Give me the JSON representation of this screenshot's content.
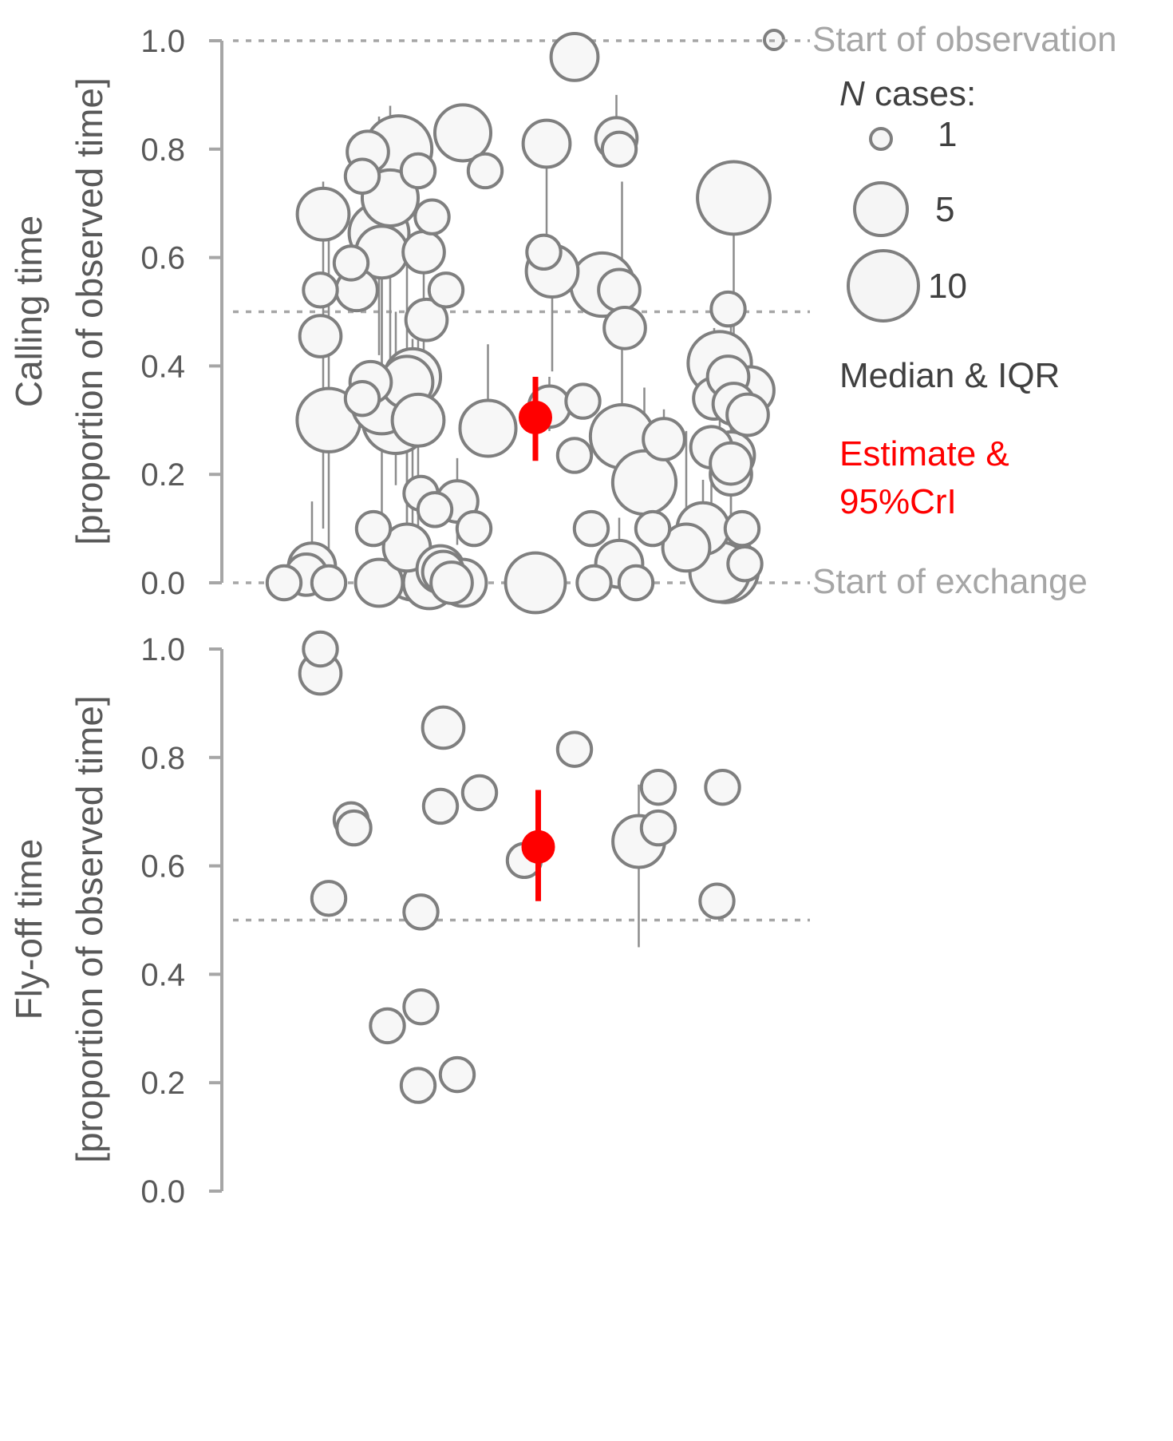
{
  "chart_data": [
    {
      "type": "scatter",
      "ylabel_line1": "Calling time",
      "ylabel_line2": "[proportion of observed time]",
      "ylim": [
        0,
        1
      ],
      "yticks": [
        "0.0",
        "0.2",
        "0.4",
        "0.6",
        "0.8",
        "1.0"
      ],
      "reference_lines": [
        1.0,
        0.5,
        0.0
      ],
      "annotations": {
        "top": "Start of observation",
        "bottom": "Start of exchange"
      },
      "legend": {
        "title_italic": "N",
        "title_rest": " cases:",
        "sizes": [
          {
            "n": 1,
            "label": "1"
          },
          {
            "n": 5,
            "label": "5"
          },
          {
            "n": 10,
            "label": "10"
          }
        ],
        "median_label": "Median & IQR",
        "estimate_line1": "Estimate &",
        "estimate_line2": "95%CrI"
      },
      "x_range": [
        0,
        1
      ],
      "estimate": {
        "x": 0.53,
        "y": 0.305,
        "lo": 0.225,
        "hi": 0.38,
        "color": "#ff0000"
      },
      "points": [
        {
          "x": 0.08,
          "y": 0.0,
          "n": 1
        },
        {
          "x": 0.12,
          "y": 0.015,
          "n": 2
        },
        {
          "x": 0.13,
          "y": 0.03,
          "n": 3,
          "lo": 0.0,
          "hi": 0.15
        },
        {
          "x": 0.16,
          "y": 0.0,
          "n": 1
        },
        {
          "x": 0.145,
          "y": 0.455,
          "n": 2
        },
        {
          "x": 0.145,
          "y": 0.54,
          "n": 1
        },
        {
          "x": 0.15,
          "y": 0.68,
          "n": 4,
          "lo": 0.1,
          "hi": 0.74
        },
        {
          "x": 0.16,
          "y": 0.3,
          "n": 7,
          "lo": 0.02,
          "hi": 0.68
        },
        {
          "x": 0.2,
          "y": 0.59,
          "n": 1
        },
        {
          "x": 0.21,
          "y": 0.54,
          "n": 2
        },
        {
          "x": 0.22,
          "y": 0.34,
          "n": 1
        },
        {
          "x": 0.22,
          "y": 0.75,
          "n": 1
        },
        {
          "x": 0.23,
          "y": 0.795,
          "n": 2
        },
        {
          "x": 0.235,
          "y": 0.37,
          "n": 2
        },
        {
          "x": 0.24,
          "y": 0.1,
          "n": 1
        },
        {
          "x": 0.25,
          "y": 0.0,
          "n": 3
        },
        {
          "x": 0.255,
          "y": 0.61,
          "n": 4,
          "lo": 0.35,
          "hi": 0.78
        },
        {
          "x": 0.25,
          "y": 0.645,
          "n": 6,
          "lo": 0.42,
          "hi": 0.86
        },
        {
          "x": 0.255,
          "y": 0.33,
          "n": 6,
          "lo": 0.1,
          "hi": 0.72
        },
        {
          "x": 0.27,
          "y": 0.71,
          "n": 5,
          "lo": 0.38,
          "hi": 0.88
        },
        {
          "x": 0.28,
          "y": 0.3,
          "n": 8,
          "lo": 0.18,
          "hi": 0.5
        },
        {
          "x": 0.285,
          "y": 0.8,
          "n": 8,
          "lo": 0.62,
          "hi": 0.82
        },
        {
          "x": 0.3,
          "y": 0.37,
          "n": 4,
          "lo": 0.1,
          "hi": 0.64
        },
        {
          "x": 0.3,
          "y": 0.065,
          "n": 3,
          "lo": 0.0,
          "hi": 0.35
        },
        {
          "x": 0.31,
          "y": 0.38,
          "n": 5,
          "lo": 0.05,
          "hi": 0.45
        },
        {
          "x": 0.31,
          "y": 0.02,
          "n": 5
        },
        {
          "x": 0.32,
          "y": 0.76,
          "n": 1
        },
        {
          "x": 0.325,
          "y": 0.165,
          "n": 1
        },
        {
          "x": 0.32,
          "y": 0.3,
          "n": 4,
          "lo": 0.0,
          "hi": 0.48
        },
        {
          "x": 0.33,
          "y": 0.61,
          "n": 2,
          "lo": 0.3,
          "hi": 0.64
        },
        {
          "x": 0.335,
          "y": 0.485,
          "n": 2
        },
        {
          "x": 0.34,
          "y": 0.0,
          "n": 4
        },
        {
          "x": 0.345,
          "y": 0.675,
          "n": 1
        },
        {
          "x": 0.35,
          "y": 0.135,
          "n": 1
        },
        {
          "x": 0.36,
          "y": 0.025,
          "n": 3
        },
        {
          "x": 0.365,
          "y": 0.02,
          "n": 2
        },
        {
          "x": 0.37,
          "y": 0.54,
          "n": 1
        },
        {
          "x": 0.38,
          "y": 0.0,
          "n": 2
        },
        {
          "x": 0.39,
          "y": 0.15,
          "n": 2,
          "lo": 0.07,
          "hi": 0.23
        },
        {
          "x": 0.4,
          "y": 0.0,
          "n": 3
        },
        {
          "x": 0.4,
          "y": 0.83,
          "n": 5
        },
        {
          "x": 0.42,
          "y": 0.1,
          "n": 1
        },
        {
          "x": 0.44,
          "y": 0.76,
          "n": 1
        },
        {
          "x": 0.445,
          "y": 0.285,
          "n": 5,
          "lo": 0.28,
          "hi": 0.44
        },
        {
          "x": 0.53,
          "y": 0.0,
          "n": 6
        },
        {
          "x": 0.555,
          "y": 0.325,
          "n": 2,
          "lo": 0.28,
          "hi": 0.38
        },
        {
          "x": 0.545,
          "y": 0.61,
          "n": 1
        },
        {
          "x": 0.55,
          "y": 0.81,
          "n": 3,
          "lo": 0.6,
          "hi": 0.83
        },
        {
          "x": 0.56,
          "y": 0.575,
          "n": 4,
          "lo": 0.39,
          "hi": 0.6
        },
        {
          "x": 0.6,
          "y": 0.235,
          "n": 1
        },
        {
          "x": 0.615,
          "y": 0.335,
          "n": 1
        },
        {
          "x": 0.6,
          "y": 0.97,
          "n": 3
        },
        {
          "x": 0.63,
          "y": 0.1,
          "n": 1
        },
        {
          "x": 0.635,
          "y": 0.0,
          "n": 1
        },
        {
          "x": 0.65,
          "y": 0.55,
          "n": 7,
          "lo": 0.49,
          "hi": 0.56
        },
        {
          "x": 0.68,
          "y": 0.8,
          "n": 1
        },
        {
          "x": 0.675,
          "y": 0.82,
          "n": 2,
          "lo": 0.81,
          "hi": 0.9
        },
        {
          "x": 0.68,
          "y": 0.54,
          "n": 2
        },
        {
          "x": 0.68,
          "y": 0.035,
          "n": 3,
          "lo": 0.0,
          "hi": 0.12
        },
        {
          "x": 0.685,
          "y": 0.27,
          "n": 7,
          "lo": 0.25,
          "hi": 0.74
        },
        {
          "x": 0.69,
          "y": 0.47,
          "n": 2
        },
        {
          "x": 0.71,
          "y": 0.0,
          "n": 1
        },
        {
          "x": 0.725,
          "y": 0.185,
          "n": 7,
          "lo": 0.15,
          "hi": 0.36
        },
        {
          "x": 0.74,
          "y": 0.1,
          "n": 1
        },
        {
          "x": 0.76,
          "y": 0.265,
          "n": 2,
          "lo": 0.2,
          "hi": 0.32
        },
        {
          "x": 0.8,
          "y": 0.065,
          "n": 3,
          "lo": 0.02,
          "hi": 0.28
        },
        {
          "x": 0.83,
          "y": 0.1,
          "n": 4,
          "lo": 0.0,
          "hi": 0.19
        },
        {
          "x": 0.845,
          "y": 0.25,
          "n": 2,
          "lo": 0.14,
          "hi": 0.27
        },
        {
          "x": 0.85,
          "y": 0.34,
          "n": 2,
          "lo": 0.3,
          "hi": 0.47
        },
        {
          "x": 0.86,
          "y": 0.405,
          "n": 7,
          "lo": 0.28,
          "hi": 0.43
        },
        {
          "x": 0.86,
          "y": 0.02,
          "n": 6,
          "lo": 0.0,
          "hi": 0.1
        },
        {
          "x": 0.87,
          "y": 0.025,
          "n": 8
        },
        {
          "x": 0.875,
          "y": 0.505,
          "n": 1
        },
        {
          "x": 0.875,
          "y": 0.38,
          "n": 2
        },
        {
          "x": 0.88,
          "y": 0.2,
          "n": 2,
          "lo": 0.1,
          "hi": 0.5
        },
        {
          "x": 0.88,
          "y": 0.22,
          "n": 2
        },
        {
          "x": 0.88,
          "y": 0.235,
          "n": 3,
          "lo": 0.12,
          "hi": 0.29
        },
        {
          "x": 0.885,
          "y": 0.33,
          "n": 2,
          "lo": 0.18,
          "hi": 0.45
        },
        {
          "x": 0.885,
          "y": 0.71,
          "n": 10,
          "lo": 0.45,
          "hi": 0.7
        },
        {
          "x": 0.9,
          "y": 0.1,
          "n": 1
        },
        {
          "x": 0.905,
          "y": 0.035,
          "n": 1
        },
        {
          "x": 0.91,
          "y": 0.31,
          "n": 2
        },
        {
          "x": 0.915,
          "y": 0.355,
          "n": 3
        }
      ]
    },
    {
      "type": "scatter",
      "ylabel_line1": "Fly-off time",
      "ylabel_line2": "[proportion of observed time]",
      "ylim": [
        0,
        1
      ],
      "yticks": [
        "0.0",
        "0.2",
        "0.4",
        "0.6",
        "0.8",
        "1.0"
      ],
      "reference_lines": [
        0.5
      ],
      "x_range": [
        0,
        1
      ],
      "estimate": {
        "x": 0.535,
        "y": 0.635,
        "lo": 0.535,
        "hi": 0.74,
        "color": "#ff0000"
      },
      "points": [
        {
          "x": 0.145,
          "y": 1.0,
          "n": 1
        },
        {
          "x": 0.145,
          "y": 0.955,
          "n": 2
        },
        {
          "x": 0.16,
          "y": 0.54,
          "n": 1
        },
        {
          "x": 0.2,
          "y": 0.685,
          "n": 1
        },
        {
          "x": 0.205,
          "y": 0.67,
          "n": 1
        },
        {
          "x": 0.265,
          "y": 0.305,
          "n": 1
        },
        {
          "x": 0.32,
          "y": 0.195,
          "n": 1
        },
        {
          "x": 0.325,
          "y": 0.515,
          "n": 1
        },
        {
          "x": 0.325,
          "y": 0.34,
          "n": 1
        },
        {
          "x": 0.365,
          "y": 0.855,
          "n": 2
        },
        {
          "x": 0.36,
          "y": 0.71,
          "n": 1
        },
        {
          "x": 0.39,
          "y": 0.215,
          "n": 1
        },
        {
          "x": 0.43,
          "y": 0.735,
          "n": 1
        },
        {
          "x": 0.51,
          "y": 0.61,
          "n": 1
        },
        {
          "x": 0.6,
          "y": 0.815,
          "n": 1
        },
        {
          "x": 0.715,
          "y": 0.645,
          "n": 4,
          "lo": 0.45,
          "hi": 0.75
        },
        {
          "x": 0.75,
          "y": 0.67,
          "n": 1
        },
        {
          "x": 0.75,
          "y": 0.745,
          "n": 1
        },
        {
          "x": 0.855,
          "y": 0.535,
          "n": 1
        },
        {
          "x": 0.865,
          "y": 0.745,
          "n": 1
        }
      ]
    }
  ]
}
